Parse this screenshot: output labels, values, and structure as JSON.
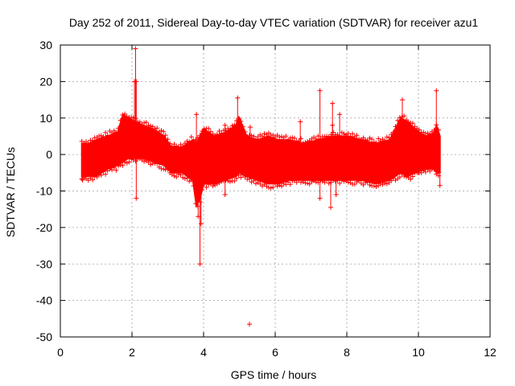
{
  "chart_data": {
    "type": "scatter",
    "title": "Day 252 of 2011, Sidereal Day-to-day VTEC variation (SDTVAR) for receiver azu1",
    "xlabel": "GPS time / hours",
    "ylabel": "SDTVAR / TECUs",
    "xlim": [
      0,
      12
    ],
    "ylim": [
      -50,
      30
    ],
    "xticks": [
      0,
      2,
      4,
      6,
      8,
      10,
      12
    ],
    "yticks": [
      -50,
      -40,
      -30,
      -20,
      -10,
      0,
      10,
      20,
      30
    ],
    "grid": true,
    "point_color": "#ff0000",
    "marker": "plus",
    "series": [
      {
        "name": "SDTVAR",
        "band": {
          "x": [
            0.6,
            0.8,
            1.0,
            1.3,
            1.6,
            1.75,
            1.9,
            2.1,
            2.3,
            2.6,
            2.9,
            3.1,
            3.4,
            3.7,
            3.8,
            3.9,
            4.0,
            4.3,
            4.6,
            4.9,
            5.0,
            5.2,
            5.5,
            5.8,
            6.1,
            6.4,
            6.8,
            7.2,
            7.6,
            8.0,
            8.4,
            8.8,
            9.2,
            9.5,
            9.7,
            9.9,
            10.2,
            10.45,
            10.5,
            10.6
          ],
          "upper": [
            3,
            3,
            4,
            5,
            6,
            11,
            10,
            9,
            8,
            7,
            5,
            2,
            2,
            4,
            3,
            5,
            7,
            5,
            6,
            8,
            10,
            5,
            4,
            5,
            4,
            4,
            3,
            4,
            5,
            5,
            4,
            3,
            4,
            10,
            9,
            7,
            5,
            6,
            8,
            5
          ],
          "lower": [
            -6,
            -6,
            -6,
            -4,
            -3,
            -2,
            -1,
            -1,
            -1,
            -2,
            -3,
            -5,
            -5,
            -7,
            -14,
            -12,
            -8,
            -8,
            -7,
            -6,
            -5,
            -6,
            -7,
            -8,
            -8,
            -7,
            -7,
            -7,
            -7,
            -7,
            -7,
            -8,
            -7,
            -5,
            -6,
            -5,
            -4,
            -4,
            -5,
            -5
          ]
        },
        "outliers": [
          {
            "x": 0.62,
            "y": -7
          },
          {
            "x": 2.1,
            "y": 29
          },
          {
            "x": 2.07,
            "y": 20
          },
          {
            "x": 2.12,
            "y": 20
          },
          {
            "x": 2.12,
            "y": -12
          },
          {
            "x": 3.8,
            "y": 11
          },
          {
            "x": 3.9,
            "y": -30
          },
          {
            "x": 3.93,
            "y": -19
          },
          {
            "x": 3.85,
            "y": -17
          },
          {
            "x": 4.6,
            "y": -11
          },
          {
            "x": 4.95,
            "y": 15.5
          },
          {
            "x": 5.28,
            "y": -46.5
          },
          {
            "x": 5.3,
            "y": 7.5
          },
          {
            "x": 7.25,
            "y": 17.5
          },
          {
            "x": 7.25,
            "y": -12
          },
          {
            "x": 7.55,
            "y": -14.5
          },
          {
            "x": 7.6,
            "y": 14
          },
          {
            "x": 7.7,
            "y": -11
          },
          {
            "x": 7.8,
            "y": 11
          },
          {
            "x": 7.6,
            "y": 8
          },
          {
            "x": 9.55,
            "y": 15
          },
          {
            "x": 10.5,
            "y": 17.5
          },
          {
            "x": 10.6,
            "y": -8.5
          },
          {
            "x": 10.0,
            "y": -5
          },
          {
            "x": 6.7,
            "y": 9
          },
          {
            "x": 4.6,
            "y": 8
          }
        ]
      }
    ]
  }
}
